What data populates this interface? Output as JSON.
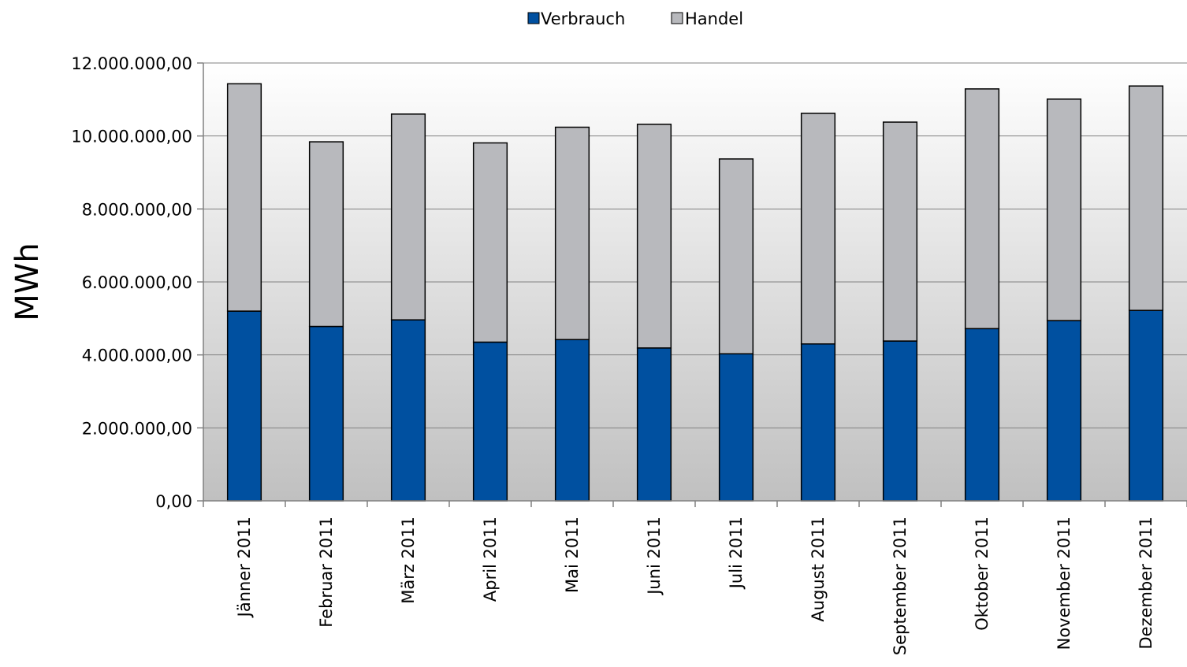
{
  "chart_data": {
    "type": "bar",
    "stacked": true,
    "categories": [
      "Jänner 2011",
      "Februar 2011",
      "März 2011",
      "April 2011",
      "Mai 2011",
      "Juni 2011",
      "Juli 2011",
      "August 2011",
      "September 2011",
      "Oktober 2011",
      "November 2011",
      "Dezember 2011"
    ],
    "series": [
      {
        "name": "Verbrauch",
        "color": "#0050a0",
        "values": [
          5200000,
          4780000,
          4960000,
          4350000,
          4420000,
          4190000,
          4030000,
          4300000,
          4380000,
          4720000,
          4940000,
          5220000
        ]
      },
      {
        "name": "Handel",
        "color": "#b8b9bd",
        "values": [
          6230000,
          5060000,
          5640000,
          5460000,
          5820000,
          6130000,
          5340000,
          6320000,
          6000000,
          6570000,
          6070000,
          6150000
        ]
      }
    ],
    "title": "",
    "xlabel": "",
    "ylabel": "MWh",
    "ylim": [
      0,
      12000000
    ],
    "yticks": [
      0,
      2000000,
      4000000,
      6000000,
      8000000,
      10000000,
      12000000
    ],
    "ytick_labels": [
      "0,00",
      "2.000.000,00",
      "4.000.000,00",
      "6.000.000,00",
      "8.000.000,00",
      "10.000.000,00",
      "12.000.000,00"
    ],
    "legend": {
      "placement": "top-center",
      "entries": [
        "Verbrauch",
        "Handel"
      ]
    },
    "grid": true,
    "background": "gradient white to gray"
  }
}
